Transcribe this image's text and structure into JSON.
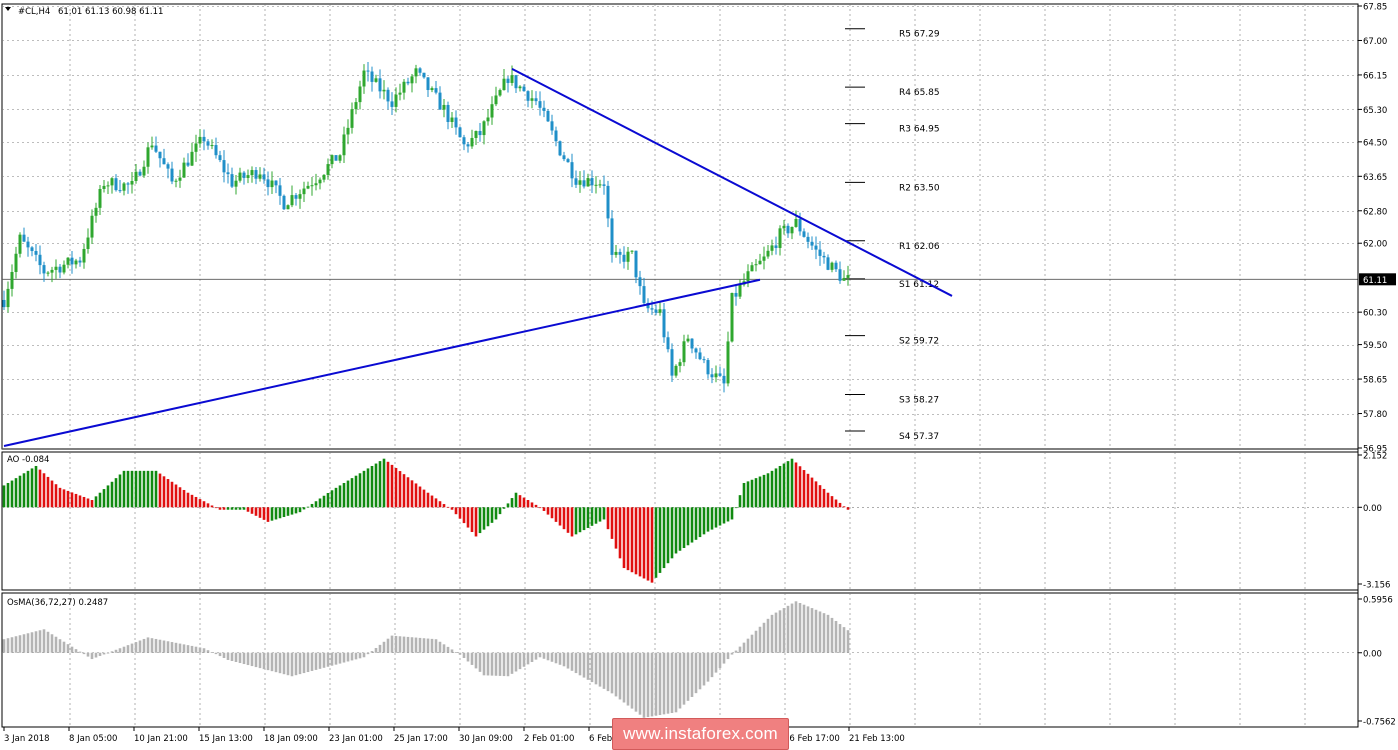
{
  "chart_header": {
    "symbol": "#CL,H4",
    "ohlc": "61.01 61.13 60.98 61.11",
    "ao_title": "AO -0.084",
    "osma_title": "OsMA(36,72,27) 0.2487"
  },
  "watermark": "www.instaforex.com",
  "colors": {
    "bull": "#2fa72f",
    "bear": "#1f8fc8",
    "trendline": "#0a0ad2",
    "ao_up": "#108a10",
    "ao_down": "#e01010",
    "osma": "#b4b4b4",
    "grid": "#7c7c7c"
  },
  "chart_data": [
    {
      "type": "candlestick",
      "ylim": [
        56.95,
        67.85
      ],
      "y_ticks": [
        "67.85",
        "67.00",
        "66.15",
        "65.30",
        "64.50",
        "63.65",
        "62.80",
        "62.00",
        "61.11",
        "60.30",
        "59.50",
        "58.65",
        "57.80",
        "56.95"
      ],
      "x_tick_labels": [
        "3 Jan 2018",
        "8 Jan 05:00",
        "10 Jan 21:00",
        "15 Jan 13:00",
        "18 Jan 09:00",
        "23 Jan 01:00",
        "25 Jan 17:00",
        "30 Jan 09:00",
        "2 Feb 01:00",
        "6 Feb 17:00",
        "9 Feb 09:00",
        "14 Feb 01:00",
        "16 Feb 17:00",
        "21 Feb 13:00"
      ],
      "current_price": "61.11",
      "pivot_levels": [
        {
          "label": "R5 67.29",
          "value": 67.29
        },
        {
          "label": "R4 65.85",
          "value": 65.85
        },
        {
          "label": "R3 64.95",
          "value": 64.95
        },
        {
          "label": "R2 63.50",
          "value": 63.5
        },
        {
          "label": "R1 62.06",
          "value": 62.06
        },
        {
          "label": "S1 61.12",
          "value": 61.12
        },
        {
          "label": "S2 59.72",
          "value": 59.72
        },
        {
          "label": "S3 58.27",
          "value": 58.27
        },
        {
          "label": "S4 57.37",
          "value": 57.37
        }
      ],
      "trendlines": [
        {
          "name": "resistance",
          "from": [
            127,
            66.3
          ],
          "to": [
            237,
            60.7
          ]
        },
        {
          "name": "support",
          "from": [
            0,
            57.0
          ],
          "to": [
            189,
            61.1
          ]
        }
      ],
      "close_path": [
        [
          0,
          60.6
        ],
        [
          4,
          62.1
        ],
        [
          10,
          61.3
        ],
        [
          19,
          61.6
        ],
        [
          25,
          63.5
        ],
        [
          32,
          63.4
        ],
        [
          37,
          64.5
        ],
        [
          42,
          63.5
        ],
        [
          50,
          64.6
        ],
        [
          57,
          63.5
        ],
        [
          64,
          63.8
        ],
        [
          70,
          63.0
        ],
        [
          78,
          63.6
        ],
        [
          84,
          64.2
        ],
        [
          90,
          66.2
        ],
        [
          97,
          65.5
        ],
        [
          103,
          66.2
        ],
        [
          110,
          65.3
        ],
        [
          115,
          64.4
        ],
        [
          119,
          64.7
        ],
        [
          126,
          66.1
        ],
        [
          133,
          65.5
        ],
        [
          139,
          64.3
        ],
        [
          143,
          63.6
        ],
        [
          150,
          63.5
        ],
        [
          152,
          61.6
        ],
        [
          157,
          61.7
        ],
        [
          160,
          60.4
        ],
        [
          164,
          60.3
        ],
        [
          167,
          58.7
        ],
        [
          171,
          59.7
        ],
        [
          175,
          59.0
        ],
        [
          180,
          58.5
        ],
        [
          182,
          60.6
        ],
        [
          186,
          61.2
        ],
        [
          190,
          61.6
        ],
        [
          194,
          62.2
        ],
        [
          198,
          62.5
        ],
        [
          203,
          61.8
        ],
        [
          206,
          61.5
        ],
        [
          210,
          61.1
        ]
      ]
    },
    {
      "type": "histogram",
      "name": "AO",
      "ylim": [
        -3.156,
        2.152
      ],
      "y_ticks": [
        "2.152",
        "0.00",
        "-3.156"
      ],
      "value_path": [
        [
          0,
          0.9
        ],
        [
          8,
          1.7
        ],
        [
          14,
          0.8
        ],
        [
          22,
          0.3
        ],
        [
          30,
          1.5
        ],
        [
          38,
          1.5
        ],
        [
          46,
          0.6
        ],
        [
          54,
          -0.1
        ],
        [
          60,
          -0.1
        ],
        [
          66,
          -0.6
        ],
        [
          74,
          -0.2
        ],
        [
          82,
          0.7
        ],
        [
          95,
          2.0
        ],
        [
          106,
          0.6
        ],
        [
          112,
          -0.1
        ],
        [
          118,
          -1.2
        ],
        [
          123,
          -0.5
        ],
        [
          128,
          0.6
        ],
        [
          134,
          0.0
        ],
        [
          142,
          -1.2
        ],
        [
          150,
          -0.5
        ],
        [
          155,
          -2.5
        ],
        [
          162,
          -3.1
        ],
        [
          168,
          -1.9
        ],
        [
          176,
          -1.0
        ],
        [
          182,
          -0.5
        ],
        [
          185,
          1.0
        ],
        [
          191,
          1.4
        ],
        [
          197,
          2.0
        ],
        [
          206,
          0.6
        ],
        [
          211,
          -0.1
        ]
      ]
    },
    {
      "type": "histogram",
      "name": "OsMA",
      "ylim": [
        -0.7562,
        0.5956
      ],
      "y_ticks": [
        "0.5956",
        "0.00",
        "-0.7562"
      ],
      "value_path": [
        [
          0,
          0.15
        ],
        [
          10,
          0.26
        ],
        [
          22,
          -0.07
        ],
        [
          36,
          0.17
        ],
        [
          50,
          0.05
        ],
        [
          56,
          -0.08
        ],
        [
          72,
          -0.26
        ],
        [
          90,
          -0.05
        ],
        [
          97,
          0.19
        ],
        [
          108,
          0.15
        ],
        [
          114,
          -0.02
        ],
        [
          120,
          -0.25
        ],
        [
          126,
          -0.26
        ],
        [
          134,
          -0.05
        ],
        [
          140,
          -0.15
        ],
        [
          152,
          -0.45
        ],
        [
          160,
          -0.72
        ],
        [
          168,
          -0.66
        ],
        [
          176,
          -0.32
        ],
        [
          182,
          -0.02
        ],
        [
          192,
          0.42
        ],
        [
          198,
          0.57
        ],
        [
          206,
          0.42
        ],
        [
          211,
          0.25
        ]
      ]
    }
  ]
}
